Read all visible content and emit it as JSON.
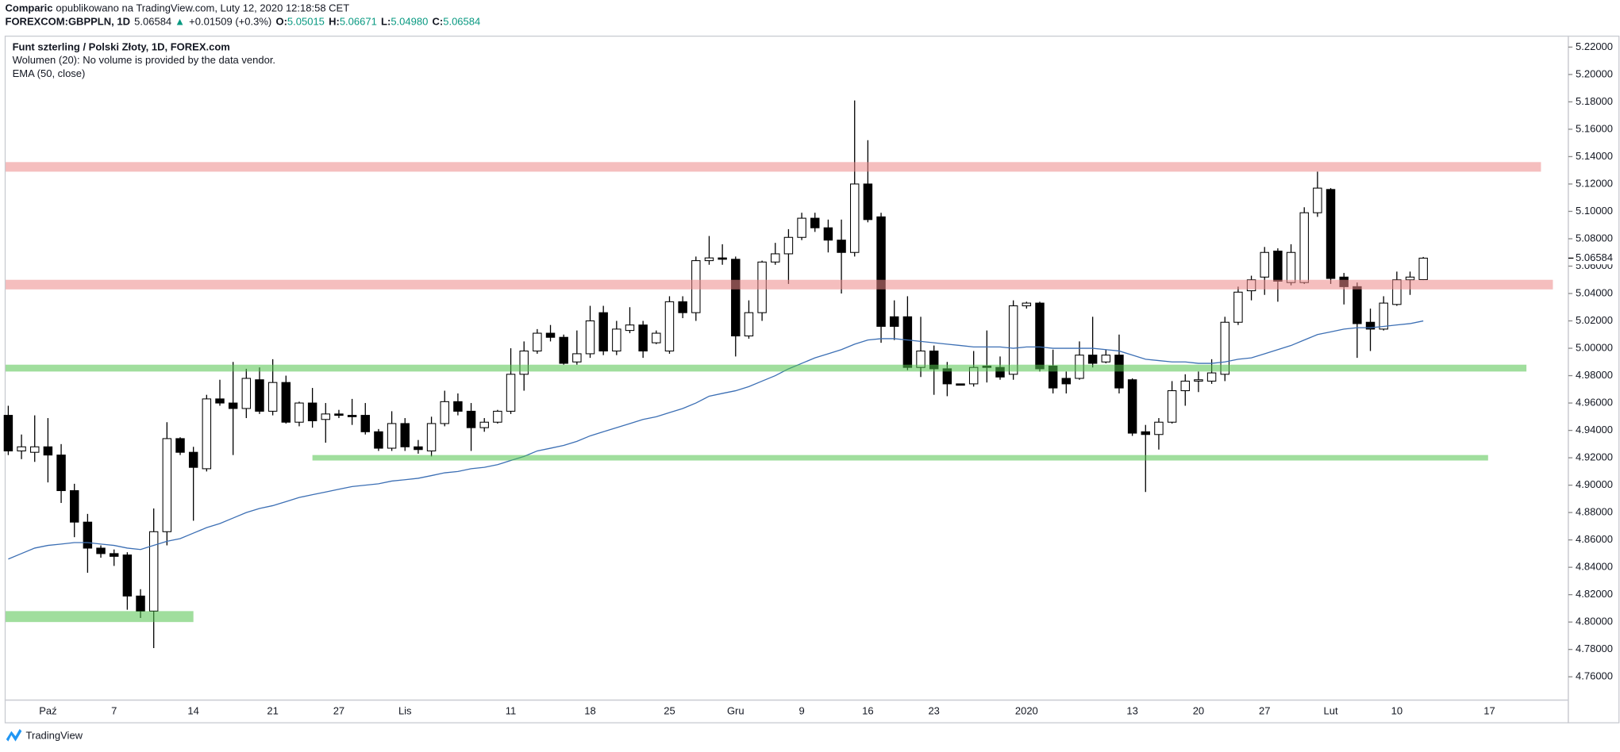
{
  "header": {
    "author": "Comparic",
    "published": "opublikowano na TradingView.com, Luty 12, 2020 12:18:58 CET",
    "symbol": "FOREXCOM:GBPPLN, 1D",
    "last": "5.06584",
    "arrow": "▲",
    "change": "+0.01509 (+0.3%)",
    "o_label": "O:",
    "o": "5.05015",
    "h_label": "H:",
    "h": "5.06671",
    "l_label": "L:",
    "l": "5.04980",
    "c_label": "C:",
    "c": "5.06584"
  },
  "indicators": [
    "Wolumen (20): No volume is provided by the data vendor."
  ],
  "footer": {
    "brand": "TradingView"
  },
  "chart_data": {
    "type": "candlestick",
    "title": "Funt szterling / Polski Złoty, 1D, FOREX.com",
    "categories": [
      null,
      null,
      null,
      "Paź",
      null,
      null,
      null,
      null,
      "7",
      null,
      null,
      null,
      null,
      null,
      "14",
      null,
      null,
      null,
      null,
      null,
      "21",
      null,
      null,
      null,
      null,
      "27",
      null,
      null,
      null,
      null,
      "Lis",
      null,
      null,
      null,
      null,
      null,
      null,
      null,
      "11",
      null,
      null,
      null,
      null,
      null,
      "18",
      null,
      null,
      null,
      null,
      null,
      "25",
      null,
      null,
      null,
      null,
      "Gru",
      null,
      null,
      null,
      null,
      "9",
      null,
      null,
      null,
      null,
      "16",
      null,
      null,
      null,
      null,
      "23",
      null,
      null,
      null,
      null,
      null,
      null,
      "2020",
      null,
      null,
      null,
      null,
      null,
      null,
      null,
      "13",
      null,
      null,
      null,
      null,
      "20",
      null,
      null,
      null,
      null,
      "27",
      null,
      null,
      null,
      null,
      "Lut",
      null,
      null,
      null,
      null,
      "10",
      null,
      null,
      null,
      null,
      null,
      null,
      "17"
    ],
    "open": [
      4.951,
      4.925,
      4.924,
      4.928,
      4.922,
      4.896,
      4.873,
      4.854,
      4.85,
      4.849,
      4.819,
      4.808,
      4.866,
      4.934,
      4.924,
      4.912,
      4.963,
      4.96,
      4.956,
      4.977,
      4.954,
      4.975,
      4.946,
      4.96,
      4.948,
      4.952,
      4.951,
      4.951,
      4.939,
      4.927,
      4.945,
      4.928,
      4.925,
      4.945,
      4.961,
      4.954,
      4.942,
      4.946,
      4.954,
      4.981,
      4.998,
      5.011,
      5.008,
      4.99,
      4.996,
      5.026,
      4.998,
      5.013,
      5.017,
      5.004,
      4.998,
      5.034,
      5.026,
      5.064,
      5.066,
      5.065,
      5.009,
      5.026,
      5.063,
      5.069,
      5.081,
      5.095,
      5.088,
      5.079,
      5.07,
      5.12,
      5.096,
      5.023,
      5.023,
      4.986,
      4.998,
      4.985,
      4.974,
      4.974,
      4.987,
      4.986,
      4.981,
      5.031,
      5.033,
      4.987,
      4.978,
      4.978,
      4.995,
      4.99,
      4.995,
      4.977,
      4.939,
      4.937,
      4.946,
      4.969,
      4.976,
      4.976,
      4.981,
      5.019,
      5.042,
      5.052,
      5.071,
      5.048,
      5.048,
      5.099,
      5.116,
      5.052,
      5.045,
      5.019,
      5.014,
      5.032,
      5.05,
      5.05015,
      null,
      null,
      null,
      null,
      null
    ],
    "high": [
      4.958,
      4.937,
      4.951,
      4.949,
      4.93,
      4.901,
      4.879,
      4.856,
      4.853,
      4.851,
      4.824,
      4.883,
      4.946,
      4.935,
      4.928,
      4.966,
      4.977,
      4.99,
      4.985,
      4.986,
      4.992,
      4.98,
      4.961,
      4.971,
      4.96,
      4.955,
      4.963,
      4.96,
      4.941,
      4.954,
      4.949,
      4.933,
      4.95,
      4.969,
      4.967,
      4.96,
      4.949,
      4.955,
      5.0,
      5.005,
      5.014,
      5.017,
      5.01,
      5.013,
      5.031,
      5.031,
      5.02,
      5.03,
      5.02,
      5.013,
      5.038,
      5.038,
      5.067,
      5.082,
      5.076,
      5.067,
      5.035,
      5.064,
      5.077,
      5.087,
      5.099,
      5.099,
      5.094,
      5.094,
      5.181,
      5.152,
      5.099,
      5.035,
      5.038,
      5.023,
      5.002,
      4.99,
      4.974,
      4.998,
      5.013,
      4.994,
      5.035,
      5.034,
      5.034,
      4.999,
      4.983,
      5.005,
      5.023,
      4.999,
      5.01,
      4.978,
      4.944,
      4.949,
      4.976,
      4.981,
      4.983,
      4.992,
      5.023,
      5.045,
      5.053,
      5.074,
      5.073,
      5.076,
      5.103,
      5.129,
      5.117,
      5.055,
      5.048,
      5.029,
      5.038,
      5.056,
      5.056,
      5.06671,
      null,
      null,
      null,
      null,
      null
    ],
    "low": [
      4.922,
      4.919,
      4.917,
      4.902,
      4.887,
      4.862,
      4.836,
      4.847,
      4.841,
      4.809,
      4.803,
      4.781,
      4.856,
      4.922,
      4.874,
      4.91,
      4.958,
      4.922,
      4.949,
      4.952,
      4.951,
      4.945,
      4.943,
      4.942,
      4.931,
      4.949,
      4.944,
      4.937,
      4.925,
      4.925,
      4.925,
      4.923,
      4.921,
      4.943,
      4.951,
      4.925,
      4.939,
      4.945,
      4.952,
      4.969,
      4.996,
      5.005,
      4.988,
      4.988,
      4.993,
      4.995,
      4.995,
      5.011,
      4.993,
      5.003,
      4.996,
      5.022,
      5.02,
      5.061,
      5.061,
      4.994,
      5.007,
      5.02,
      5.061,
      5.047,
      5.079,
      5.085,
      5.07,
      5.04,
      5.067,
      5.092,
      5.004,
      5.006,
      4.984,
      4.979,
      4.966,
      4.965,
      4.973,
      4.972,
      4.975,
      4.977,
      4.977,
      5.029,
      4.983,
      4.967,
      4.967,
      4.977,
      4.986,
      4.989,
      4.967,
      4.936,
      4.895,
      4.926,
      4.945,
      4.958,
      4.968,
      4.974,
      4.976,
      5.017,
      5.035,
      5.039,
      5.034,
      5.046,
      5.047,
      5.096,
      5.047,
      5.032,
      4.993,
      4.998,
      5.013,
      5.031,
      5.039,
      5.0498,
      null,
      null,
      null,
      null,
      null
    ],
    "close": [
      4.925,
      4.928,
      4.928,
      4.922,
      4.896,
      4.873,
      4.854,
      4.85,
      4.848,
      4.819,
      4.808,
      4.866,
      4.934,
      4.924,
      4.913,
      4.963,
      4.96,
      4.956,
      4.978,
      4.954,
      4.975,
      4.946,
      4.96,
      4.947,
      4.952,
      4.951,
      4.95,
      4.939,
      4.927,
      4.945,
      4.928,
      4.926,
      4.945,
      4.961,
      4.954,
      4.942,
      4.946,
      4.954,
      4.981,
      4.998,
      5.011,
      5.008,
      4.989,
      4.996,
      5.02,
      4.998,
      5.014,
      5.017,
      4.998,
      5.011,
      5.034,
      5.026,
      5.064,
      5.066,
      5.065,
      5.009,
      5.026,
      5.063,
      5.069,
      5.081,
      5.095,
      5.088,
      5.079,
      5.07,
      5.12,
      5.094,
      5.016,
      5.016,
      4.986,
      4.998,
      4.985,
      4.974,
      4.973,
      4.986,
      4.986,
      4.979,
      5.031,
      5.033,
      4.985,
      4.971,
      4.974,
      4.995,
      4.989,
      4.995,
      4.971,
      4.938,
      4.937,
      4.946,
      4.969,
      4.976,
      4.977,
      4.982,
      5.019,
      5.041,
      5.05,
      5.07,
      5.049,
      5.07,
      5.099,
      5.117,
      5.051,
      5.045,
      5.018,
      5.014,
      5.033,
      5.05,
      5.052,
      5.06584,
      null,
      null,
      null,
      null,
      null
    ],
    "up_color": "#ffffff",
    "down_color": "#000000",
    "series": [
      {
        "name": "EMA (50, close)",
        "type": "line",
        "color": "#3c6fb4",
        "values": [
          4.846,
          4.85,
          4.854,
          4.856,
          4.857,
          4.858,
          4.858,
          4.857,
          4.856,
          4.854,
          4.853,
          4.856,
          4.859,
          4.861,
          4.865,
          4.869,
          4.872,
          4.876,
          4.88,
          4.883,
          4.885,
          4.888,
          4.891,
          4.893,
          4.895,
          4.897,
          4.899,
          4.9,
          4.901,
          4.903,
          4.904,
          4.905,
          4.907,
          4.909,
          4.91,
          4.912,
          4.913,
          4.915,
          4.918,
          4.921,
          4.925,
          4.927,
          4.929,
          4.932,
          4.936,
          4.939,
          4.942,
          4.945,
          4.948,
          4.95,
          4.953,
          4.956,
          4.96,
          4.965,
          4.967,
          4.969,
          4.972,
          4.976,
          4.98,
          4.985,
          4.989,
          4.993,
          4.996,
          4.999,
          5.003,
          5.006,
          5.007,
          5.007,
          5.006,
          5.005,
          5.004,
          5.003,
          5.002,
          5.001,
          5.001,
          5.001,
          5.0,
          5.001,
          5.001,
          5.0,
          5.0,
          5.0,
          5.0,
          4.999,
          4.998,
          4.995,
          4.992,
          4.991,
          4.99,
          4.99,
          4.989,
          4.989,
          4.99,
          4.992,
          4.993,
          4.996,
          4.999,
          5.002,
          5.006,
          5.01,
          5.012,
          5.014,
          5.015,
          5.015,
          5.016,
          5.017,
          5.018,
          5.02,
          null,
          null,
          null,
          null,
          null
        ]
      }
    ],
    "zones": [
      {
        "low": 5.129,
        "high": 5.136,
        "start": -0.2,
        "end": 115.9,
        "color": "#ec8888"
      },
      {
        "low": 5.043,
        "high": 5.05,
        "start": -0.2,
        "end": 116.8,
        "color": "#ec8888"
      },
      {
        "low": 4.983,
        "high": 4.988,
        "start": -0.2,
        "end": 114.8,
        "color": "#52c24d"
      },
      {
        "low": 4.918,
        "high": 4.922,
        "start": 23,
        "end": 111.9,
        "color": "#52c24d"
      },
      {
        "low": 4.8,
        "high": 4.808,
        "start": -0.2,
        "end": 14,
        "color": "#52c24d"
      }
    ],
    "ylim": [
      4.743,
      5.228
    ],
    "yticks": [
      {
        "value": 4.76,
        "label": "4.76000"
      },
      {
        "value": 4.78,
        "label": "4.78000"
      },
      {
        "value": 4.8,
        "label": "4.80000"
      },
      {
        "value": 4.82,
        "label": "4.82000"
      },
      {
        "value": 4.84,
        "label": "4.84000"
      },
      {
        "value": 4.86,
        "label": "4.86000"
      },
      {
        "value": 4.88,
        "label": "4.88000"
      },
      {
        "value": 4.9,
        "label": "4.90000"
      },
      {
        "value": 4.92,
        "label": "4.92000"
      },
      {
        "value": 4.94,
        "label": "4.94000"
      },
      {
        "value": 4.96,
        "label": "4.96000"
      },
      {
        "value": 4.98,
        "label": "4.98000"
      },
      {
        "value": 5.0,
        "label": "5.00000"
      },
      {
        "value": 5.02,
        "label": "5.02000"
      },
      {
        "value": 5.04,
        "label": "5.04000"
      },
      {
        "value": 5.06,
        "label": "5.06000"
      },
      {
        "value": 5.08,
        "label": "5.08000"
      },
      {
        "value": 5.1,
        "label": "5.10000"
      },
      {
        "value": 5.12,
        "label": "5.12000"
      },
      {
        "value": 5.14,
        "label": "5.14000"
      },
      {
        "value": 5.16,
        "label": "5.16000"
      },
      {
        "value": 5.18,
        "label": "5.18000"
      },
      {
        "value": 5.2,
        "label": "5.20000"
      },
      {
        "value": 5.22,
        "label": "5.22000"
      }
    ],
    "grid": false
  }
}
